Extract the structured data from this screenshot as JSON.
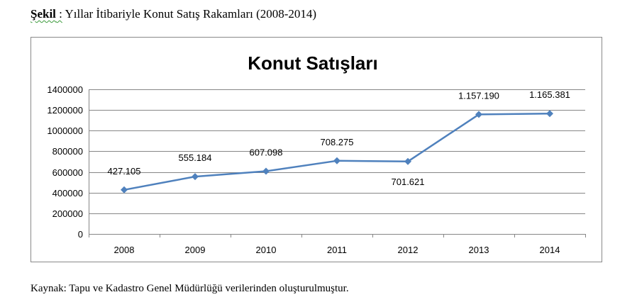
{
  "caption": {
    "label": "Şekil",
    "separator": " :",
    "text": " Yıllar İtibariyle Konut Satış Rakamları (2008-2014)"
  },
  "source": "Kaynak: Tapu ve Kadastro Genel Müdürlüğü verilerinden oluşturulmuştur.",
  "chart_data": {
    "type": "line",
    "title": "Konut Satışları",
    "xlabel": "",
    "ylabel": "",
    "categories": [
      "2008",
      "2009",
      "2010",
      "2011",
      "2012",
      "2013",
      "2014"
    ],
    "series": [
      {
        "values": [
          427105,
          555184,
          607098,
          708275,
          701621,
          1157190,
          1165381
        ],
        "labels": [
          "427.105",
          "555.184",
          "607.098",
          "708.275",
          "701.621",
          "1.157.190",
          "1.165.381"
        ]
      }
    ],
    "ylim": [
      0,
      1400000
    ],
    "yticks": [
      0,
      200000,
      400000,
      600000,
      800000,
      1000000,
      1200000,
      1400000
    ],
    "ytick_labels": [
      "0",
      "200000",
      "400000",
      "600000",
      "800000",
      "1000000",
      "1200000",
      "1400000"
    ],
    "grid": true,
    "legend": "none",
    "line_color": "#4f81bd",
    "marker": "diamond",
    "grid_color": "#868686"
  }
}
